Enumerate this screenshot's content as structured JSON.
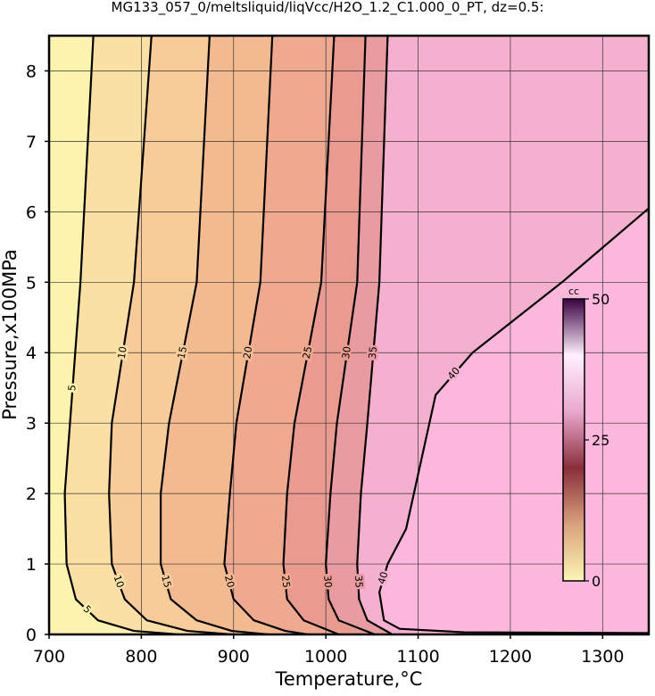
{
  "chart_data": {
    "type": "contour",
    "title": "MG133_057_0/meltsliquid/liqVcc/H2O_1.2_C1.000_0_PT, dz=0.5:",
    "x_label": "Temperature,°C",
    "y_label": "Pressure,x100MPa",
    "xlim": [
      700,
      1350
    ],
    "ylim": [
      0,
      8.5
    ],
    "xticks": [
      700,
      800,
      900,
      1000,
      1100,
      1200,
      1300
    ],
    "yticks": [
      0,
      1,
      2,
      3,
      4,
      5,
      6,
      7,
      8
    ],
    "grid": true,
    "band_colors": [
      "#fcf4ae",
      "#fae0a2",
      "#f7cc98",
      "#f3ba90",
      "#efa98f",
      "#e99b90",
      "#e89ca2",
      "#f6b0cf",
      "#fcb8dc"
    ],
    "contours": [
      {
        "level": 5,
        "x": [
          840,
          792,
          753,
          729,
          719,
          717,
          734,
          748
        ],
        "y": [
          0,
          0.05,
          0.2,
          0.5,
          1,
          2,
          5,
          8.5
        ]
      },
      {
        "level": 10,
        "x": [
          898,
          850,
          806,
          782,
          768,
          765,
          768,
          792,
          811
        ],
        "y": [
          0,
          0.05,
          0.2,
          0.5,
          1,
          2,
          3,
          5,
          8.5
        ]
      },
      {
        "level": 15,
        "x": [
          937,
          898,
          860,
          832,
          821,
          821,
          830,
          860,
          874
        ],
        "y": [
          0,
          0.05,
          0.2,
          0.5,
          1,
          2,
          3,
          5,
          8.5
        ]
      },
      {
        "level": 20,
        "x": [
          980,
          956,
          922,
          900,
          890,
          896,
          903,
          929,
          942
        ],
        "y": [
          0,
          0.05,
          0.2,
          0.5,
          1,
          2,
          3,
          5,
          8.5
        ]
      },
      {
        "level": 25,
        "x": [
          1014,
          976,
          958,
          954,
          958,
          966,
          995,
          1009
        ],
        "y": [
          0,
          0.2,
          0.5,
          1,
          2,
          3,
          5,
          8.5
        ]
      },
      {
        "level": 30,
        "x": [
          1053,
          1014,
          1003,
          1000,
          1005,
          1012,
          1034,
          1043
        ],
        "y": [
          0,
          0.2,
          0.5,
          1,
          2,
          3,
          5,
          8.5
        ]
      },
      {
        "level": 35,
        "x": [
          1072,
          1045,
          1036,
          1034,
          1038,
          1045,
          1058,
          1067
        ],
        "y": [
          0,
          0.2,
          0.5,
          1,
          2,
          3,
          5,
          8.5
        ]
      },
      {
        "level": 40,
        "x": [
          1350,
          1150,
          1080,
          1063,
          1058,
          1067,
          1087,
          1119,
          1159,
          1256,
          1350
        ],
        "y": [
          0.02,
          0.03,
          0.08,
          0.2,
          0.6,
          1,
          1.5,
          3.4,
          4,
          5,
          6.05
        ]
      }
    ],
    "colorbar": {
      "label": "cc",
      "lim": [
        0,
        50
      ],
      "ticks": [
        0,
        25,
        50
      ],
      "colors": [
        "#fbf6b4",
        "#d9a27c",
        "#8a2e3a",
        "#e8a8cc",
        "#fff0ff",
        "#3a0040"
      ]
    }
  }
}
